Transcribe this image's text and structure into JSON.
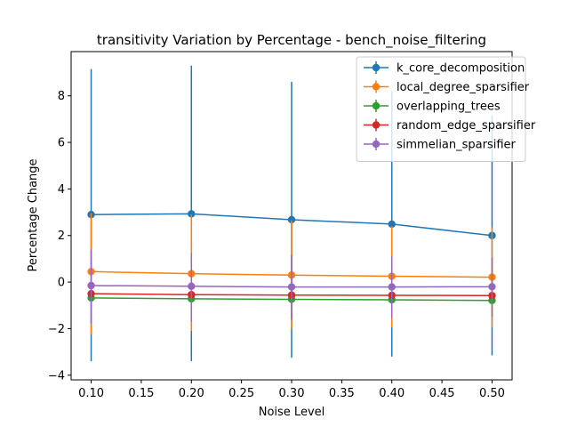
{
  "chart_data": {
    "type": "line",
    "title": "transitivity Variation by Percentage - bench_noise_filtering",
    "xlabel": "Noise Level",
    "ylabel": "Percentage Change",
    "x": [
      0.1,
      0.2,
      0.3,
      0.4,
      0.5
    ],
    "xlim": [
      0.08,
      0.52
    ],
    "ylim": [
      -4.2,
      9.9
    ],
    "xticks": [
      0.1,
      0.15,
      0.2,
      0.25,
      0.3,
      0.35,
      0.4,
      0.45,
      0.5
    ],
    "xtick_labels": [
      "0.10",
      "0.15",
      "0.20",
      "0.25",
      "0.30",
      "0.35",
      "0.40",
      "0.45",
      "0.50"
    ],
    "yticks": [
      -4,
      -2,
      0,
      2,
      4,
      6,
      8
    ],
    "ytick_labels": [
      "−4",
      "−2",
      "0",
      "2",
      "4",
      "6",
      "8"
    ],
    "grid": false,
    "legend_position": "top-right",
    "series": [
      {
        "name": "k_core_decomposition",
        "color": "#1f77b4",
        "values": [
          2.9,
          2.93,
          2.68,
          2.49,
          2.0
        ],
        "err_low": [
          -3.4,
          -3.4,
          -3.25,
          -3.2,
          -3.15
        ],
        "err_high": [
          9.15,
          9.3,
          8.6,
          8.2,
          7.15
        ]
      },
      {
        "name": "local_degree_sparsifier",
        "color": "#ff7f0e",
        "values": [
          0.45,
          0.36,
          0.3,
          0.25,
          0.21
        ],
        "err_low": [
          -2.25,
          -2.1,
          -2.0,
          -1.95,
          -1.95
        ],
        "err_high": [
          2.95,
          2.9,
          2.65,
          2.4,
          2.35
        ]
      },
      {
        "name": "overlapping_trees",
        "color": "#2ca02c",
        "values": [
          -0.68,
          -0.72,
          -0.74,
          -0.76,
          -0.79
        ],
        "err_low": [
          -0.7,
          -0.74,
          -0.76,
          -0.78,
          -0.81
        ],
        "err_high": [
          -0.66,
          -0.7,
          -0.72,
          -0.74,
          -0.77
        ]
      },
      {
        "name": "random_edge_sparsifier",
        "color": "#d62728",
        "values": [
          -0.5,
          -0.54,
          -0.56,
          -0.57,
          -0.58
        ],
        "err_low": [
          -0.52,
          -0.56,
          -0.58,
          -0.59,
          -0.6
        ],
        "err_high": [
          -0.48,
          -0.52,
          -0.54,
          -0.55,
          -0.56
        ]
      },
      {
        "name": "simmelian_sparsifier",
        "color": "#9467bd",
        "values": [
          -0.15,
          -0.18,
          -0.21,
          -0.21,
          -0.2
        ],
        "err_low": [
          -1.8,
          -1.7,
          -1.6,
          -1.55,
          -1.5
        ],
        "err_high": [
          1.4,
          1.25,
          1.15,
          1.1,
          1.05
        ]
      }
    ]
  }
}
